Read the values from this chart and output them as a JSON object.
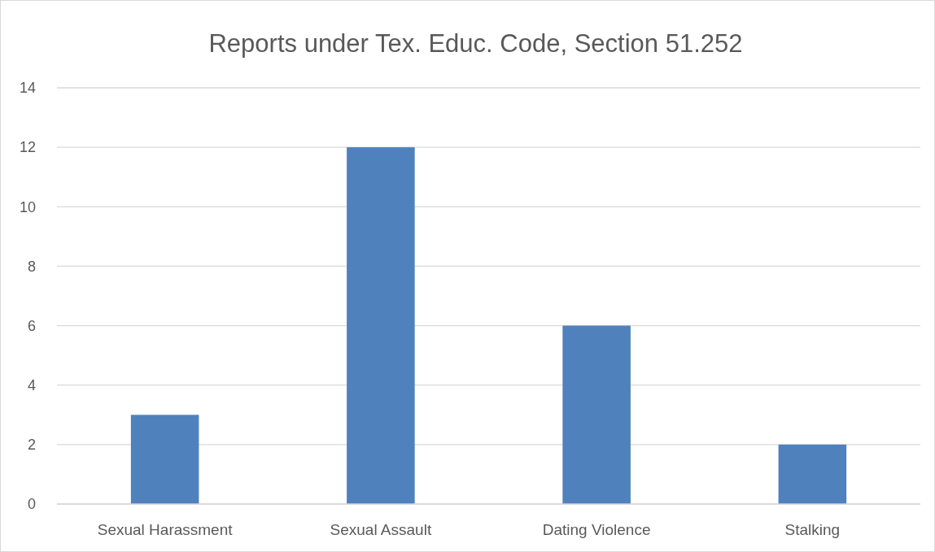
{
  "chart_data": {
    "type": "bar",
    "title": "Reports under Tex. Educ. Code, Section 51.252",
    "categories": [
      "Sexual Harassment",
      "Sexual Assault",
      "Dating Violence",
      "Stalking"
    ],
    "values": [
      3,
      12,
      6,
      2
    ],
    "color": "#4f81bd",
    "ylim": [
      0,
      14
    ],
    "yticks": [
      0,
      2,
      4,
      6,
      8,
      10,
      12,
      14
    ],
    "grid": "y"
  }
}
